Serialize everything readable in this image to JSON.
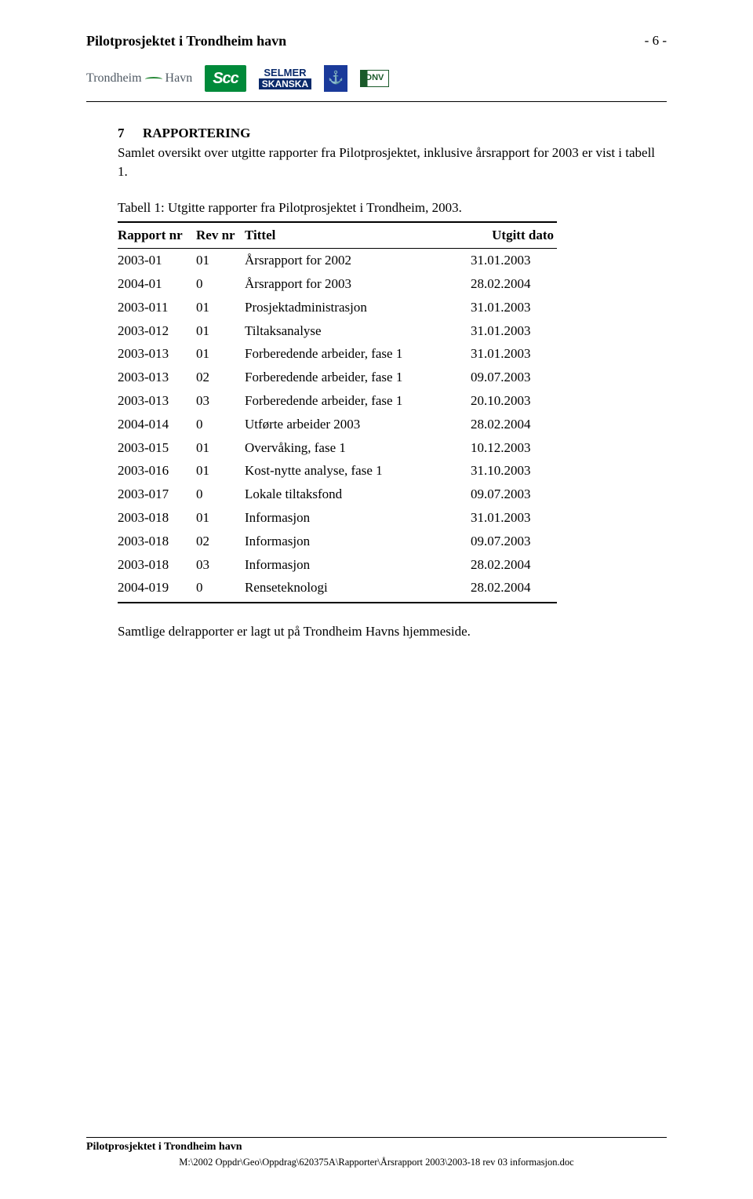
{
  "header": {
    "title": "Pilotprosjektet i Trondheim havn",
    "page_number": "- 6 -"
  },
  "logos": {
    "trondheim_left": "Trondheim",
    "trondheim_right": "Havn",
    "scc": "Scc",
    "selmer_top": "SELMER",
    "selmer_bottom": "SKANSKA",
    "anchor_glyph": "⚓",
    "dnv": "DNV"
  },
  "section": {
    "number": "7",
    "title": "RAPPORTERING",
    "intro": "Samlet oversikt over utgitte rapporter fra Pilotprosjektet, inklusive årsrapport for 2003 er vist i tabell 1.",
    "table_caption": "Tabell 1:  Utgitte rapporter fra Pilotprosjektet i Trondheim, 2003.",
    "after_table": "Samtlige delrapporter er lagt ut på Trondheim Havns hjemmeside."
  },
  "table": {
    "columns": [
      "Rapport nr",
      "Rev nr",
      "Tittel",
      "Utgitt dato"
    ],
    "rows": [
      [
        "2003-01",
        "01",
        "Årsrapport for 2002",
        "31.01.2003"
      ],
      [
        "2004-01",
        "0",
        "Årsrapport for 2003",
        "28.02.2004"
      ],
      [
        "2003-011",
        "01",
        "Prosjektadministrasjon",
        "31.01.2003"
      ],
      [
        "2003-012",
        "01",
        "Tiltaksanalyse",
        "31.01.2003"
      ],
      [
        "2003-013",
        "01",
        "Forberedende arbeider, fase 1",
        "31.01.2003"
      ],
      [
        "2003-013",
        "02",
        "Forberedende arbeider, fase 1",
        "09.07.2003"
      ],
      [
        "2003-013",
        "03",
        "Forberedende arbeider, fase 1",
        "20.10.2003"
      ],
      [
        "2004-014",
        "0",
        "Utførte arbeider 2003",
        "28.02.2004"
      ],
      [
        "2003-015",
        "01",
        "Overvåking, fase 1",
        "10.12.2003"
      ],
      [
        "2003-016",
        "01",
        "Kost-nytte analyse, fase 1",
        "31.10.2003"
      ],
      [
        "2003-017",
        "0",
        "Lokale tiltaksfond",
        "09.07.2003"
      ],
      [
        "2003-018",
        "01",
        "Informasjon",
        "31.01.2003"
      ],
      [
        "2003-018",
        "02",
        "Informasjon",
        "09.07.2003"
      ],
      [
        "2003-018",
        "03",
        "Informasjon",
        "28.02.2004"
      ],
      [
        "2004-019",
        "0",
        "Renseteknologi",
        "28.02.2004"
      ]
    ]
  },
  "footer": {
    "title": "Pilotprosjektet i Trondheim havn",
    "path": "M:\\2002 Oppdr\\Geo\\Oppdrag\\620375A\\Rapporter\\Årsrapport 2003\\2003-18 rev 03 informasjon.doc"
  }
}
